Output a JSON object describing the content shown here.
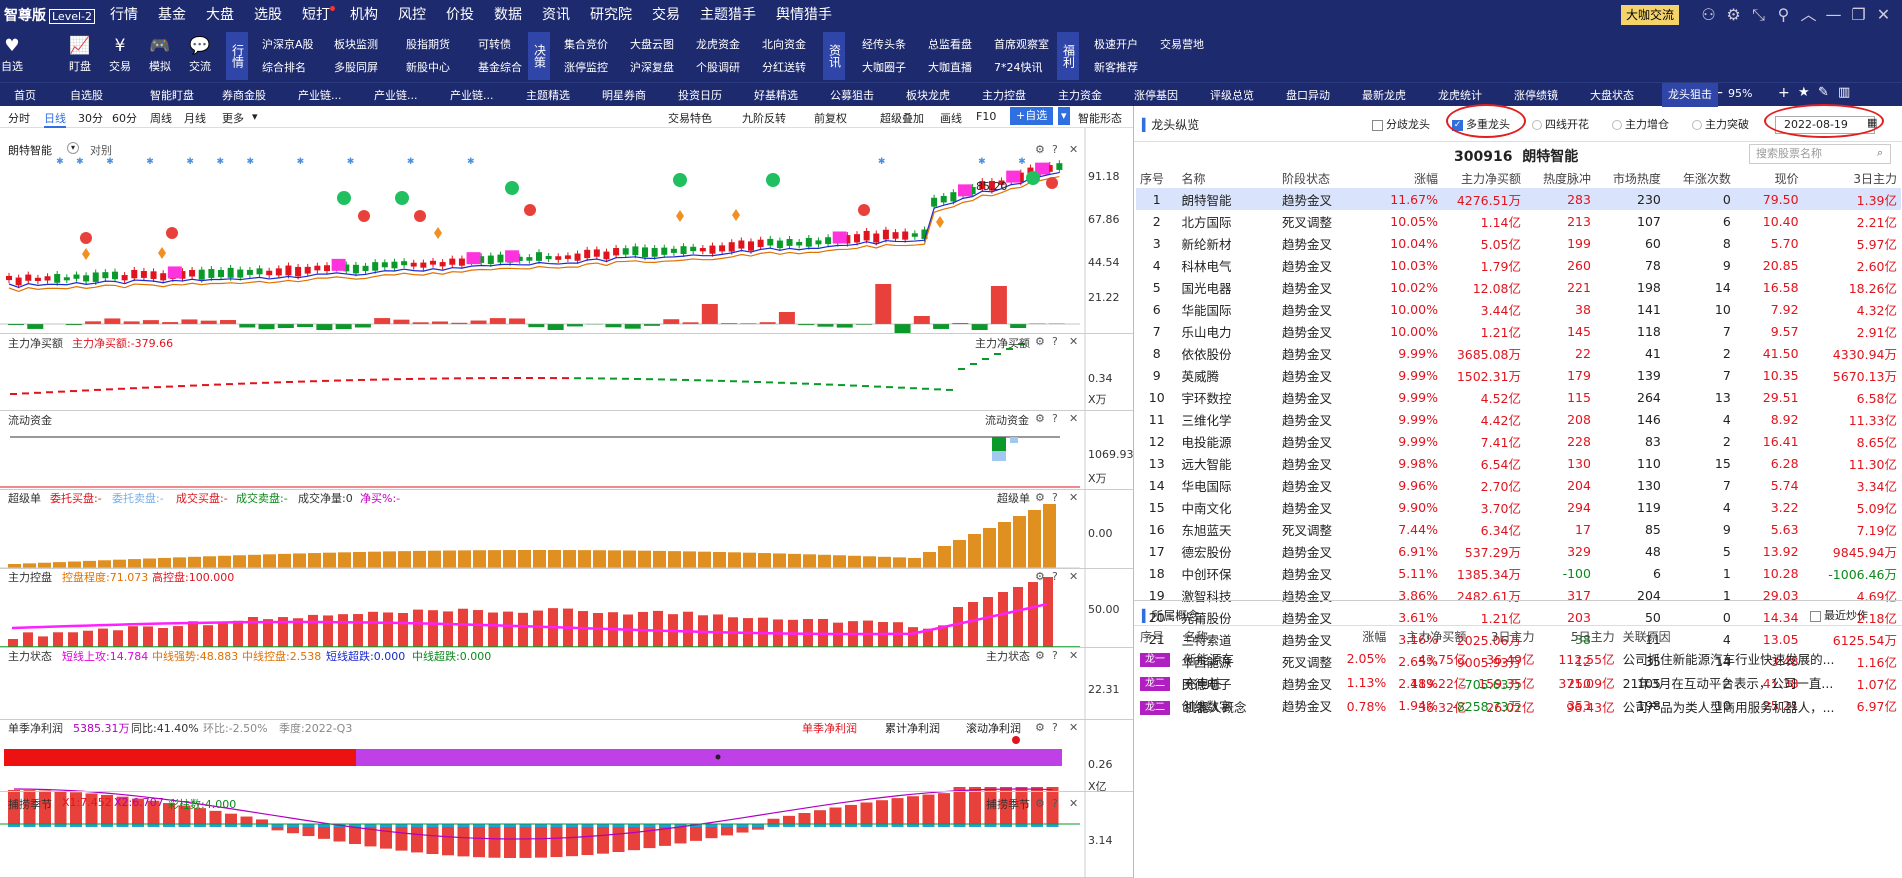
{
  "topbar": {
    "brand": "智尊版",
    "tag": "Level-2",
    "menu": [
      "行情",
      "基金",
      "大盘",
      "选股",
      "短打",
      "机构",
      "风控",
      "价投",
      "数据",
      "资讯",
      "研究院",
      "交易",
      "主题猎手",
      "舆情猎手"
    ],
    "biga": "大咖交流"
  },
  "tool2": {
    "big": [
      {
        "label": "自选",
        "icon": "♥"
      },
      {
        "label": "盯盘",
        "icon": "📈"
      },
      {
        "label": "交易",
        "icon": "¥"
      },
      {
        "label": "模拟",
        "icon": "🎮"
      },
      {
        "label": "交流",
        "icon": "💬"
      }
    ],
    "g1": {
      "head": "行情",
      "items": [
        "沪深京A股",
        "板块监测",
        "股指期货",
        "可转债",
        "综合排名",
        "多股同屏",
        "新股中心",
        "基金综合"
      ]
    },
    "g2": {
      "head": "决策",
      "items": [
        "集合竞价",
        "大盘云图",
        "龙虎资金",
        "北向资金",
        "涨停监控",
        "沪深复盘",
        "个股调研",
        "分红送转"
      ]
    },
    "g3": {
      "head": "资讯",
      "items": [
        "经传头条",
        "总监看盘",
        "首席观察室",
        "大咖圈子",
        "大咖直播",
        "7*24快讯"
      ]
    },
    "g4": {
      "head": "福利",
      "items": [
        "极速开户",
        "交易营地",
        "新客推荐"
      ]
    }
  },
  "tabs": {
    "items": [
      "首页",
      "自选股",
      "智能盯盘",
      "券商金股",
      "产业链...",
      "产业链...",
      "产业链...",
      "主题精选",
      "明星券商",
      "投资日历",
      "好基精选",
      "公募狙击",
      "板块龙虎",
      "主力控盘",
      "主力资金",
      "涨停基因",
      "评级总览",
      "盘口异动",
      "最新龙虎",
      "龙虎统计",
      "涨停绩镜",
      "大盘状态",
      "龙头狙击"
    ],
    "zoom": "95%"
  },
  "chart_toolbar": {
    "periods": [
      "分时",
      "日线",
      "30分",
      "60分",
      "周线",
      "月线",
      "更多"
    ],
    "active": "日线",
    "right": [
      "交易特色",
      "九阶反转",
      "前复权",
      "超级叠加",
      "画线",
      "F10",
      "+自选",
      "智能形态"
    ]
  },
  "main_panel": {
    "name": "朗特智能",
    "compare": "对别",
    "yaxis": [
      "91.18",
      "67.86",
      "44.54",
      "21.22"
    ],
    "last": "85.20"
  },
  "panels": {
    "p1": {
      "title": "主力净买额",
      "value_label": "主力净买额:-379.66",
      "right_label": "主力净买额",
      "ticks": [
        "0.34",
        "X万"
      ]
    },
    "p2": {
      "title": "流动资金",
      "right_label": "流动资金",
      "ticks": [
        "1069.93",
        "X万"
      ]
    },
    "p3": {
      "title": "超级单",
      "items": [
        "委托买盘:-",
        "委托卖盘:-",
        "成交买盘:-",
        "成交卖盘:-",
        "成交净量:0",
        "净买%:-"
      ],
      "right_label": "超级单",
      "ticks": [
        "0.00"
      ]
    },
    "p4": {
      "title": "主力控盘",
      "items": [
        "控盘程度:71.073",
        "高控盘:100.000"
      ],
      "ticks": [
        "50.00"
      ]
    },
    "p5": {
      "title": "主力状态",
      "items": [
        "短线上攻:14.784",
        "中线强势:48.883",
        "中线控盘:2.538",
        "短线超跌:0.000",
        "中线超跌:0.000"
      ],
      "right_label": "主力状态",
      "ticks": [
        "22.31"
      ]
    },
    "p6": {
      "title": "单季净利润",
      "items": [
        "5385.31万",
        "同比:41.40%",
        "环比:-2.50%",
        "季度:2022-Q3"
      ],
      "btns": [
        "单季净利润",
        "累计净利润",
        "滚动净利润"
      ],
      "ticks": [
        "0.26",
        "X亿"
      ]
    },
    "p7": {
      "title": "捕捞季节",
      "items": [
        "X1:7.452",
        "X2:6.707",
        "彩柱数:4.000"
      ],
      "right_label": "捕捞季节",
      "ticks": [
        "3.14"
      ]
    }
  },
  "right": {
    "title": "龙头纵览",
    "filters": [
      "分歧龙头",
      "多重龙头",
      "四线开花",
      "主力增仓",
      "主力突破"
    ],
    "date": "2022-08-19",
    "code": "300916",
    "name": "朗特智能",
    "search_ph": "搜索股票名称",
    "cols": [
      "序号",
      "名称",
      "阶段状态",
      "涨幅",
      "主力净买额",
      "热度脉冲",
      "市场热度",
      "年涨次数",
      "现价",
      "3日主力"
    ],
    "rows": [
      [
        "1",
        "朗特智能",
        "趋势金叉",
        "11.67%",
        "4276.51万",
        "283",
        "230",
        "0",
        "79.50",
        "1.39亿"
      ],
      [
        "2",
        "北方国际",
        "死叉调整",
        "10.05%",
        "1.14亿",
        "213",
        "107",
        "6",
        "10.40",
        "2.21亿"
      ],
      [
        "3",
        "新纶新材",
        "趋势金叉",
        "10.04%",
        "5.05亿",
        "199",
        "60",
        "8",
        "5.70",
        "5.97亿"
      ],
      [
        "4",
        "科林电气",
        "趋势金叉",
        "10.03%",
        "1.79亿",
        "260",
        "78",
        "9",
        "20.85",
        "2.60亿"
      ],
      [
        "5",
        "国光电器",
        "趋势金叉",
        "10.02%",
        "12.08亿",
        "221",
        "198",
        "14",
        "16.58",
        "18.26亿"
      ],
      [
        "6",
        "华能国际",
        "趋势金叉",
        "10.00%",
        "3.44亿",
        "38",
        "141",
        "10",
        "7.92",
        "4.32亿"
      ],
      [
        "7",
        "乐山电力",
        "趋势金叉",
        "10.00%",
        "1.21亿",
        "145",
        "118",
        "7",
        "9.57",
        "2.91亿"
      ],
      [
        "8",
        "依依股份",
        "趋势金叉",
        "9.99%",
        "3685.08万",
        "22",
        "41",
        "2",
        "41.50",
        "4330.94万"
      ],
      [
        "9",
        "英威腾",
        "趋势金叉",
        "9.99%",
        "1502.31万",
        "179",
        "139",
        "7",
        "10.35",
        "5670.13万"
      ],
      [
        "10",
        "宇环数控",
        "趋势金叉",
        "9.99%",
        "4.52亿",
        "115",
        "264",
        "13",
        "29.51",
        "6.58亿"
      ],
      [
        "11",
        "三维化学",
        "趋势金叉",
        "9.99%",
        "4.42亿",
        "208",
        "146",
        "4",
        "8.92",
        "11.33亿"
      ],
      [
        "12",
        "电投能源",
        "趋势金叉",
        "9.99%",
        "7.41亿",
        "228",
        "83",
        "2",
        "16.41",
        "8.65亿"
      ],
      [
        "13",
        "远大智能",
        "趋势金叉",
        "9.98%",
        "6.54亿",
        "130",
        "110",
        "15",
        "6.28",
        "11.30亿"
      ],
      [
        "14",
        "华电国际",
        "趋势金叉",
        "9.96%",
        "2.70亿",
        "204",
        "130",
        "7",
        "5.74",
        "3.34亿"
      ],
      [
        "15",
        "中南文化",
        "趋势金叉",
        "9.90%",
        "3.70亿",
        "294",
        "119",
        "4",
        "3.22",
        "5.09亿"
      ],
      [
        "16",
        "东旭蓝天",
        "死叉调整",
        "7.44%",
        "6.34亿",
        "17",
        "85",
        "9",
        "5.63",
        "7.19亿"
      ],
      [
        "17",
        "德宏股份",
        "趋势金叉",
        "6.91%",
        "537.29万",
        "329",
        "48",
        "5",
        "13.92",
        "9845.94万"
      ],
      [
        "18",
        "中创环保",
        "趋势金叉",
        "5.11%",
        "1385.34万",
        "-100",
        "6",
        "1",
        "10.28",
        "-1006.46万"
      ],
      [
        "19",
        "激智科技",
        "趋势金叉",
        "3.86%",
        "2482.61万",
        "317",
        "204",
        "1",
        "29.03",
        "4.69亿"
      ],
      [
        "20",
        "光莆股份",
        "趋势金叉",
        "3.61%",
        "1.21亿",
        "203",
        "50",
        "0",
        "14.34",
        "2.18亿"
      ],
      [
        "21",
        "三特索道",
        "趋势金叉",
        "3.16%",
        "2025.06万",
        "-38",
        "11",
        "4",
        "13.05",
        "6125.54万"
      ],
      [
        "22",
        "华西能源",
        "死叉调整",
        "2.65%",
        "9005.93万",
        "12",
        "35",
        "14",
        "3.48",
        "1.16亿"
      ],
      [
        "23",
        "民德电子",
        "趋势金叉",
        "2.48%",
        "-705.63万",
        "250",
        "105",
        "2",
        "41.38",
        "1.07亿"
      ],
      [
        "24",
        "创维数字",
        "趋势金叉",
        "1.94%",
        "-8258.73万",
        "353",
        "198",
        "10",
        "25.21",
        "6.97亿"
      ]
    ],
    "concepts_title": "所属概念",
    "recent": "最近炒作",
    "ccols": [
      "序号",
      "名称",
      "涨幅",
      "主力净买额",
      "3日主力",
      "5日主力",
      "关联原因"
    ],
    "crows": [
      [
        "龙一",
        "新能源车",
        "2.05%",
        "43.75亿",
        "36.49亿",
        "112.55亿",
        "公司抓住新能源汽车行业快速发展的..."
      ],
      [
        "龙二",
        "充电桩",
        "1.13%",
        "119.22亿",
        "159.35亿",
        "371.09亿",
        "21年3月在互动平台表示，公司一直..."
      ],
      [
        "龙二",
        "机器人概念",
        "0.78%",
        "36.32亿",
        "26.02亿",
        "96.43亿",
        "公司产品为类人型商用服务机器人，..."
      ]
    ]
  }
}
